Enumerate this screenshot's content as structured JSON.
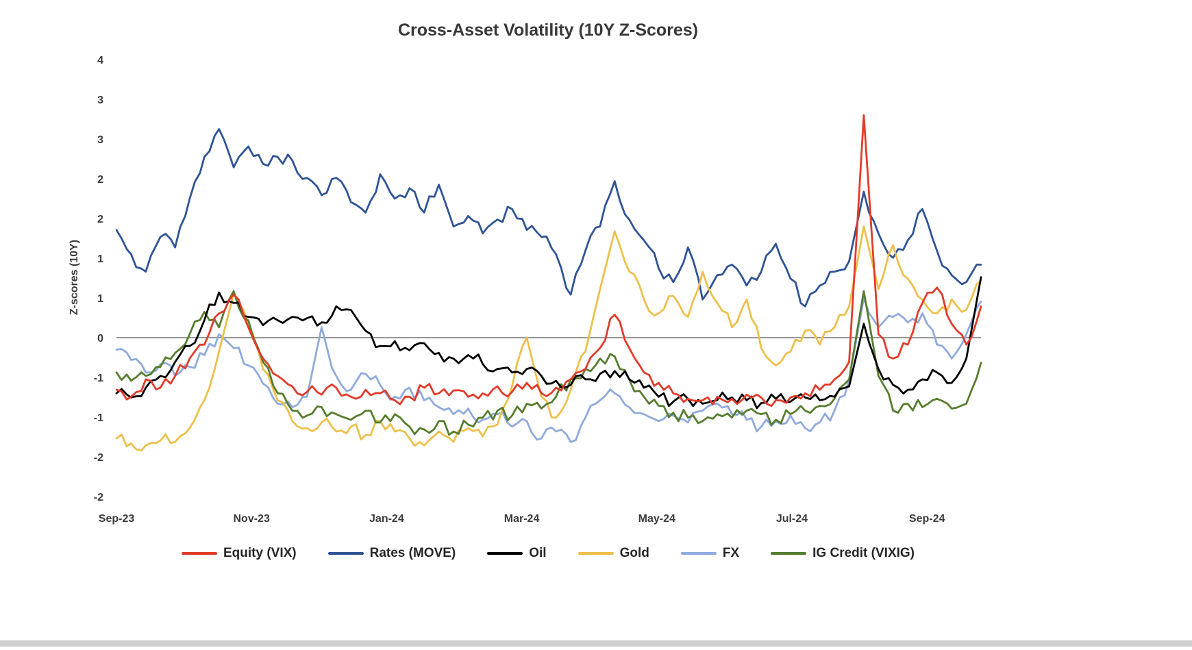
{
  "chart_data": {
    "type": "line",
    "title": "Cross-Asset Volatility (10Y Z-Scores)",
    "ylabel": "Z-scores (10Y)",
    "xlabel": "",
    "grid": false,
    "legend_position": "bottom",
    "x_tick_labels": [
      "Sep-23",
      "Nov-23",
      "Jan-24",
      "Mar-24",
      "May-24",
      "Jul-24",
      "Sep-24"
    ],
    "x_tick_months": [
      0,
      2,
      4,
      6,
      8,
      10,
      12
    ],
    "x_domain_months": [
      0,
      12.8
    ],
    "y_tick_labels": [
      "4",
      "3",
      "3",
      "2",
      "2",
      "1",
      "1",
      "0",
      "-1",
      "-1",
      "-2",
      "-2"
    ],
    "y_domain": [
      -2.2857,
      4
    ],
    "zero_line": true,
    "series": [
      {
        "name": "Equity (VIX)",
        "color": "#e23b2a",
        "values": [
          -0.75,
          -0.85,
          -0.6,
          -0.72,
          -0.55,
          -0.3,
          -0.1,
          0.35,
          0.62,
          0.15,
          -0.3,
          -0.55,
          -0.7,
          -0.78,
          -0.82,
          -0.72,
          -0.85,
          -0.75,
          -0.8,
          -0.9,
          -0.85,
          -0.72,
          -0.8,
          -0.76,
          -0.85,
          -0.8,
          -0.7,
          -0.78,
          -0.65,
          -0.8,
          -0.72,
          -0.6,
          -0.45,
          -0.15,
          0.33,
          -0.15,
          -0.5,
          -0.65,
          -0.8,
          -0.88,
          -0.9,
          -0.85,
          -0.88,
          -0.82,
          -0.86,
          -0.9,
          -0.86,
          -0.8,
          -0.75,
          -0.6,
          -0.35,
          3.2,
          0.05,
          -0.3,
          -0.1,
          0.5,
          0.72,
          0.2,
          -0.1,
          0.45
        ]
      },
      {
        "name": "Rates (MOVE)",
        "color": "#2f5496",
        "values": [
          1.55,
          1.2,
          0.95,
          1.45,
          1.3,
          2.0,
          2.6,
          3.0,
          2.45,
          2.75,
          2.5,
          2.6,
          2.55,
          2.3,
          2.05,
          2.3,
          1.95,
          1.8,
          2.35,
          2.0,
          2.15,
          1.8,
          2.2,
          1.6,
          1.75,
          1.5,
          1.7,
          1.85,
          1.55,
          1.45,
          1.2,
          0.62,
          1.25,
          1.6,
          2.25,
          1.7,
          1.4,
          1.0,
          0.8,
          1.3,
          0.55,
          0.9,
          1.05,
          0.75,
          0.95,
          1.35,
          0.85,
          0.45,
          0.75,
          0.95,
          1.1,
          2.1,
          1.5,
          1.15,
          1.4,
          1.85,
          1.25,
          0.9,
          0.8,
          1.05
        ]
      },
      {
        "name": "Oil",
        "color": "#000000",
        "values": [
          -0.8,
          -0.86,
          -0.72,
          -0.55,
          -0.35,
          -0.12,
          0.25,
          0.65,
          0.5,
          0.3,
          0.18,
          0.25,
          0.3,
          0.28,
          0.22,
          0.45,
          0.4,
          0.1,
          -0.12,
          -0.05,
          -0.18,
          -0.08,
          -0.22,
          -0.3,
          -0.25,
          -0.38,
          -0.45,
          -0.5,
          -0.45,
          -0.55,
          -0.62,
          -0.68,
          -0.6,
          -0.52,
          -0.48,
          -0.6,
          -0.72,
          -0.85,
          -0.92,
          -0.88,
          -0.95,
          -0.9,
          -0.86,
          -0.9,
          -0.94,
          -0.88,
          -0.92,
          -0.86,
          -0.9,
          -0.85,
          -0.7,
          0.2,
          -0.45,
          -0.68,
          -0.75,
          -0.6,
          -0.5,
          -0.65,
          -0.3,
          0.87
        ]
      },
      {
        "name": "Gold",
        "color": "#edc04c",
        "values": [
          -1.45,
          -1.52,
          -1.55,
          -1.48,
          -1.5,
          -1.3,
          -0.9,
          -0.2,
          0.64,
          0.2,
          -0.45,
          -0.9,
          -1.2,
          -1.3,
          -1.22,
          -1.35,
          -1.28,
          -1.4,
          -1.2,
          -1.35,
          -1.45,
          -1.55,
          -1.35,
          -1.5,
          -1.3,
          -1.42,
          -1.25,
          -0.7,
          0.0,
          -0.85,
          -1.15,
          -0.75,
          -0.2,
          0.7,
          1.53,
          0.95,
          0.55,
          0.35,
          0.6,
          0.3,
          0.95,
          0.5,
          0.15,
          0.55,
          -0.15,
          -0.4,
          -0.2,
          0.1,
          -0.1,
          0.15,
          0.45,
          1.6,
          0.7,
          1.33,
          0.85,
          0.55,
          0.35,
          0.55,
          0.4,
          0.82
        ]
      },
      {
        "name": "FX",
        "color": "#8faadc",
        "values": [
          -0.17,
          -0.32,
          -0.5,
          -0.38,
          -0.55,
          -0.42,
          -0.25,
          0.05,
          -0.15,
          -0.4,
          -0.66,
          -0.95,
          -1.0,
          -0.85,
          0.15,
          -0.55,
          -0.75,
          -0.52,
          -0.68,
          -0.85,
          -0.72,
          -0.9,
          -1.0,
          -1.1,
          -1.02,
          -1.18,
          -1.1,
          -1.28,
          -1.2,
          -1.45,
          -1.35,
          -1.5,
          -1.15,
          -0.9,
          -0.8,
          -1.0,
          -1.1,
          -1.2,
          -1.12,
          -1.22,
          -1.05,
          -0.95,
          -1.1,
          -1.18,
          -1.28,
          -1.2,
          -1.12,
          -1.3,
          -1.22,
          -1.05,
          -0.6,
          0.57,
          0.15,
          0.3,
          0.22,
          0.35,
          -0.1,
          -0.3,
          0.05,
          0.52
        ]
      },
      {
        "name": "IG Credit (VIXIG)",
        "color": "#567d2e",
        "values": [
          -0.5,
          -0.62,
          -0.55,
          -0.42,
          -0.22,
          0.05,
          0.37,
          0.15,
          0.67,
          0.25,
          -0.35,
          -0.8,
          -1.05,
          -1.12,
          -1.0,
          -1.1,
          -1.18,
          -1.05,
          -1.22,
          -1.1,
          -1.28,
          -1.32,
          -1.2,
          -1.35,
          -1.25,
          -1.15,
          -1.05,
          -1.12,
          -0.95,
          -1.02,
          -0.85,
          -0.6,
          -0.45,
          -0.3,
          -0.27,
          -0.6,
          -0.85,
          -0.98,
          -1.08,
          -1.15,
          -1.2,
          -1.1,
          -1.15,
          -1.05,
          -1.1,
          -1.18,
          -1.1,
          -1.05,
          -0.98,
          -0.88,
          -0.6,
          0.67,
          -0.55,
          -1.05,
          -0.95,
          -1.0,
          -0.88,
          -1.02,
          -0.95,
          -0.36
        ]
      }
    ]
  }
}
